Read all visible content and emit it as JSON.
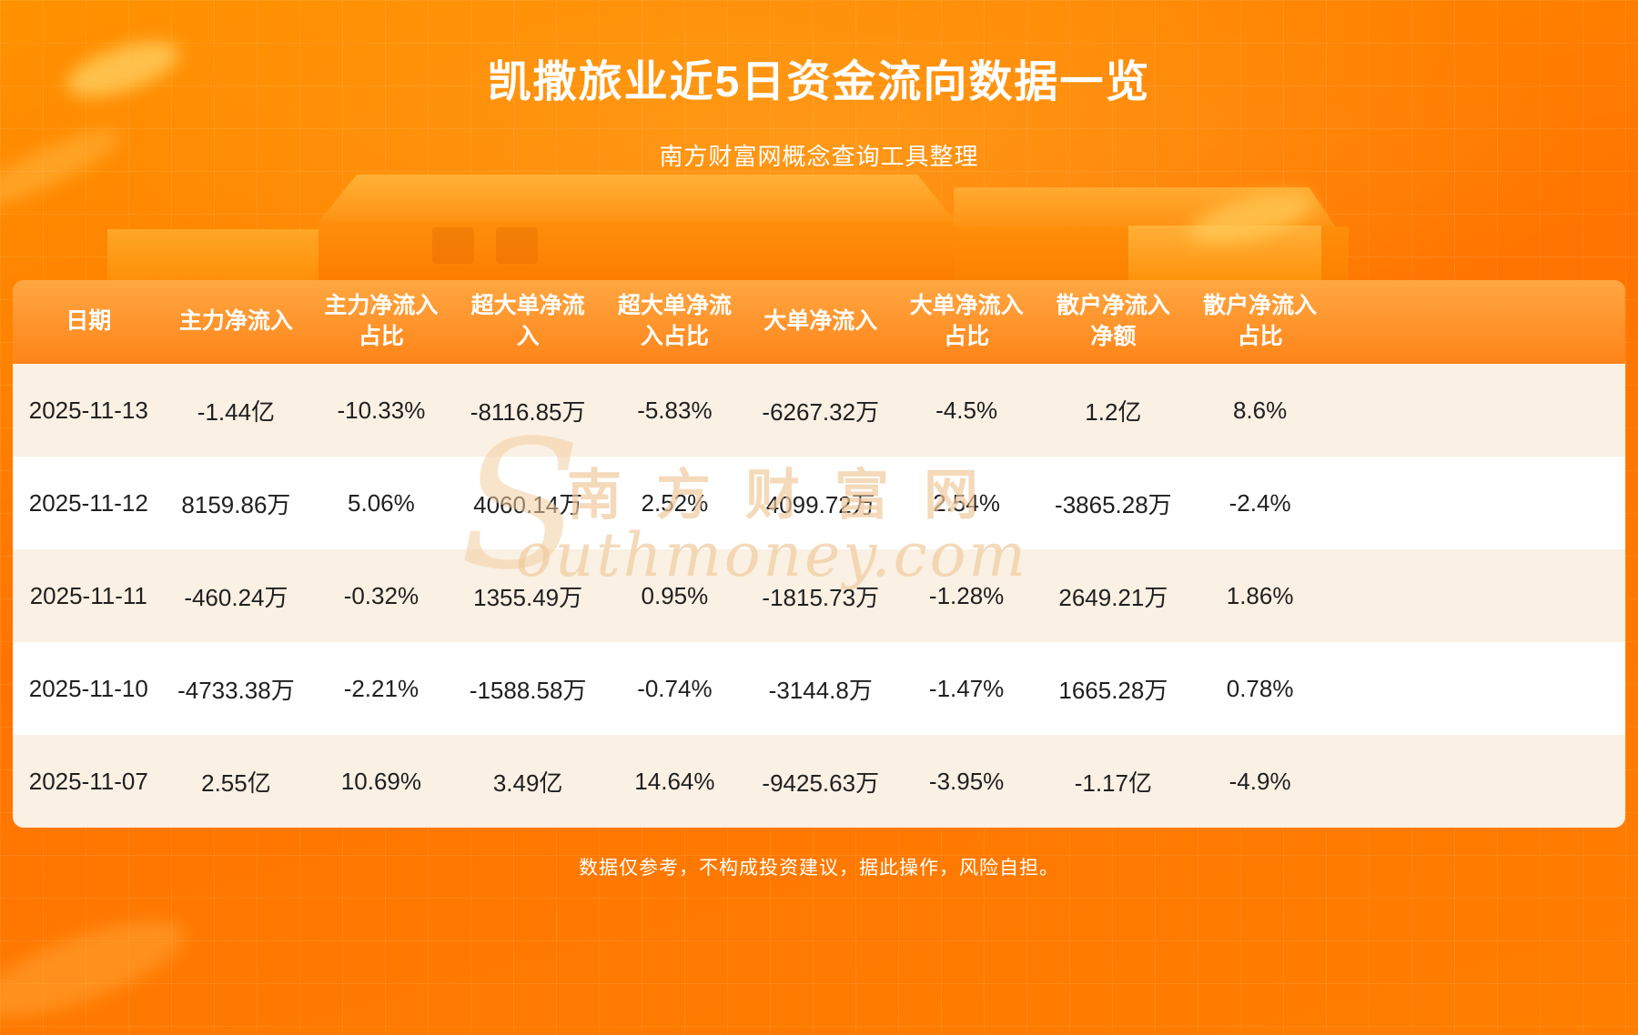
{
  "page": {
    "title": "凯撒旅业近5日资金流向数据一览",
    "subtitle": "南方财富网概念查询工具整理",
    "disclaimer": "数据仅参考，不构成投资建议，据此操作，风险自担。"
  },
  "watermark": {
    "big_letter": "S",
    "cn": "南方财富网",
    "en": "outhmoney.com"
  },
  "chart_data": {
    "type": "table",
    "title": "凯撒旅业近5日资金流向数据一览",
    "columns": [
      "日期",
      "主力净流入",
      "主力净流入\n占比",
      "超大单净流\n入",
      "超大单净流\n入占比",
      "大单净流入",
      "大单净流入\n占比",
      "散户净流入\n净额",
      "散户净流入\n占比"
    ],
    "rows": [
      [
        "2025-11-13",
        "-1.44亿",
        "-10.33%",
        "-8116.85万",
        "-5.83%",
        "-6267.32万",
        "-4.5%",
        "1.2亿",
        "8.6%"
      ],
      [
        "2025-11-12",
        "8159.86万",
        "5.06%",
        "4060.14万",
        "2.52%",
        "4099.72万",
        "2.54%",
        "-3865.28万",
        "-2.4%"
      ],
      [
        "2025-11-11",
        "-460.24万",
        "-0.32%",
        "1355.49万",
        "0.95%",
        "-1815.73万",
        "-1.28%",
        "2649.21万",
        "1.86%"
      ],
      [
        "2025-11-10",
        "-4733.38万",
        "-2.21%",
        "-1588.58万",
        "-0.74%",
        "-3144.8万",
        "-1.47%",
        "1665.28万",
        "0.78%"
      ],
      [
        "2025-11-07",
        "2.55亿",
        "10.69%",
        "3.49亿",
        "14.64%",
        "-9425.63万",
        "-3.95%",
        "-1.17亿",
        "-4.9%"
      ]
    ]
  },
  "colors": {
    "background_orange": "#ff7a00",
    "header_gradient_top": "#ffa742",
    "header_gradient_bottom": "#ff8418",
    "row_cream": "#faf0e3",
    "row_white": "#ffffff",
    "text_dark": "#1f1f1f",
    "text_white": "#ffffff",
    "watermark_tan": "#f0ca9c"
  }
}
